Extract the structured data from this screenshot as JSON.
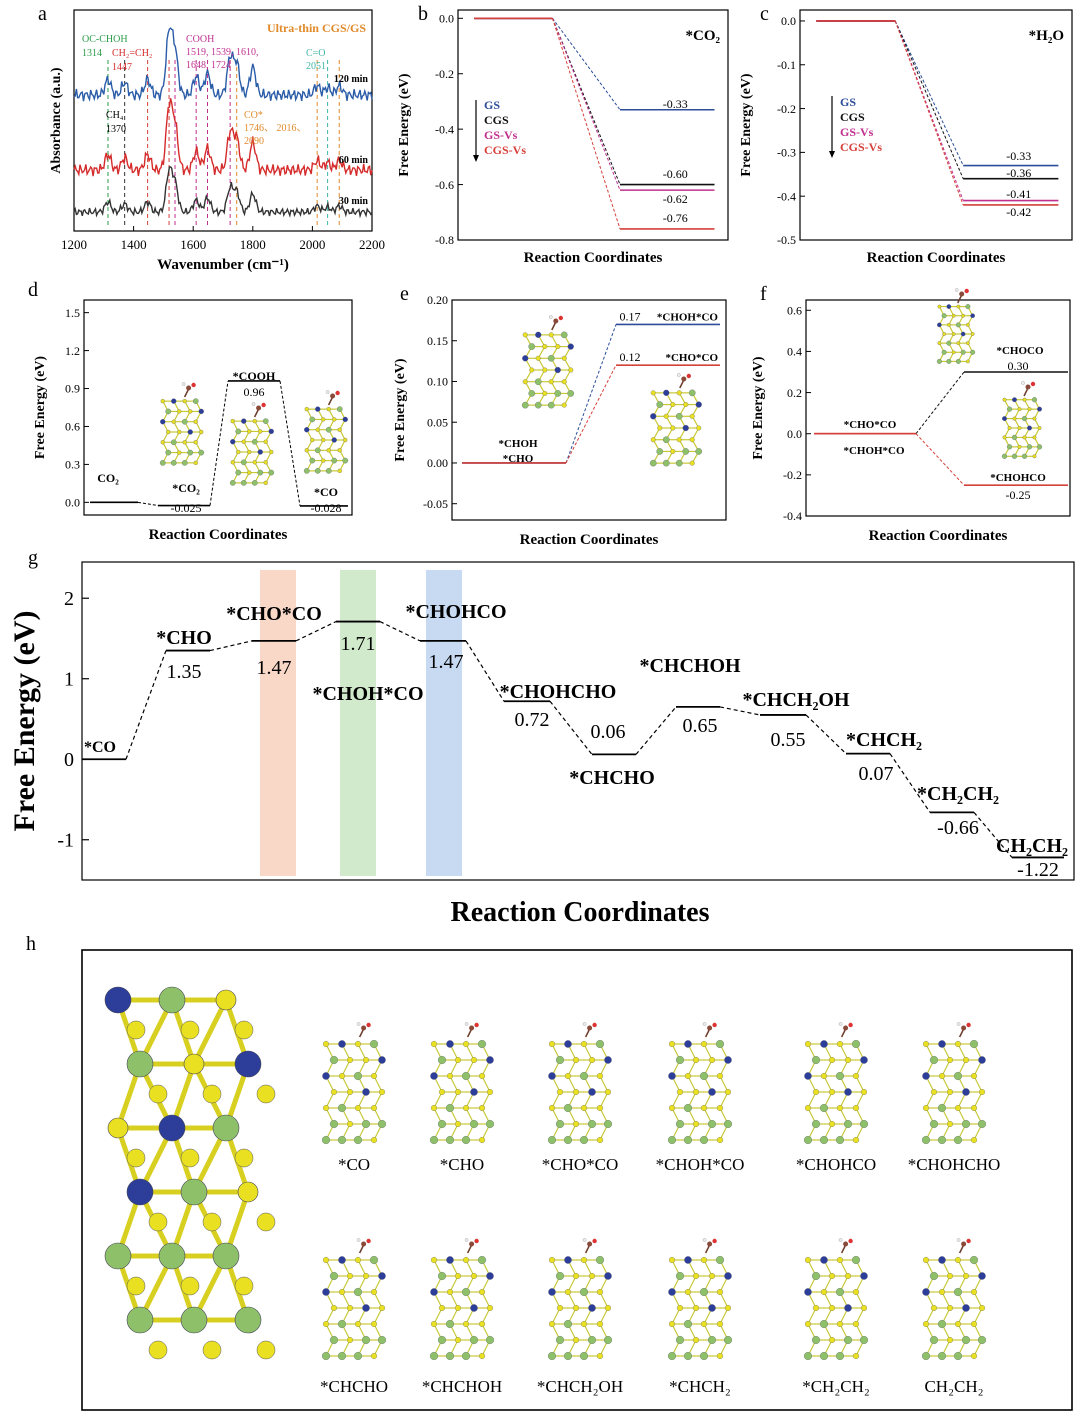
{
  "colors": {
    "gs": "#2b4d9a",
    "cgs": "#111111",
    "gsvs": "#c0308f",
    "cgsvs": "#d6403a",
    "blue_trace": "#2a5ca8",
    "red_trace": "#d52b2b",
    "gray_trace": "#333333",
    "orange_text": "#e08a2a",
    "green_text": "#2a9d4a",
    "teal_text": "#3fb6a6",
    "atom_yellow": "#e8e020",
    "atom_green": "#8ec06a",
    "atom_blue": "#2c3e99",
    "band_orange": "#f4b89a",
    "band_green": "#a9d8a0",
    "band_blue": "#9bbbe8"
  },
  "panels": {
    "a": {
      "letter": "a",
      "title": "Ultra-thin CGS/GS",
      "xlabel": "Wavenumber (cm⁻¹)",
      "ylabel": "Absorbance (a.u.)",
      "xticks": [
        "1200",
        "1400",
        "1600",
        "1800",
        "2000",
        "2200"
      ],
      "traces": [
        "120 min",
        "60 min",
        "30 min"
      ],
      "ann_occhoh": [
        "OC-CHOH",
        "1314"
      ],
      "ann_ch2ch2": [
        "CH₂=CH₂",
        "1447"
      ],
      "ann_cooh": [
        "COOH",
        "1519, 1539, 1610,",
        "1648, 1724"
      ],
      "ann_co": [
        "C=O",
        "2051"
      ],
      "ann_ch4": [
        "CH₄",
        "1370"
      ],
      "ann_costar": [
        "CO*",
        "1746、 2016、",
        "2090"
      ]
    },
    "b": {
      "letter": "b",
      "species": "*CO₂",
      "xlabel": "Reaction Coordinates",
      "ylabel": "Free Energy (eV)",
      "legend": [
        "GS",
        "CGS",
        "GS-Vs",
        "CGS-Vs"
      ],
      "yticks": [
        "0.0",
        "-0.2",
        "-0.4",
        "-0.6",
        "-0.8"
      ],
      "vals": [
        "-0.33",
        "-0.60",
        "-0.62",
        "-0.76"
      ]
    },
    "c": {
      "letter": "c",
      "species": "*H₂O",
      "xlabel": "Reaction Coordinates",
      "ylabel": "Free Energy (eV)",
      "legend": [
        "GS",
        "CGS",
        "GS-Vs",
        "CGS-Vs"
      ],
      "yticks": [
        "0.0",
        "-0.1",
        "-0.2",
        "-0.3",
        "-0.4",
        "-0.5"
      ],
      "vals": [
        "-0.33",
        "-0.36",
        "-0.41",
        "-0.42"
      ]
    },
    "d": {
      "letter": "d",
      "xlabel": "Reaction Coordinates",
      "ylabel": "Free Energy (eV)",
      "yticks": [
        "1.5",
        "1.2",
        "0.9",
        "0.6",
        "0.3",
        "0.0"
      ],
      "states": [
        "CO₂",
        "*CO₂",
        "*COOH",
        "*CO"
      ],
      "vals": [
        "-0.025",
        "0.96",
        "-0.028"
      ]
    },
    "e": {
      "letter": "e",
      "xlabel": "Reaction Coordinates",
      "ylabel": "Free Energy (eV)",
      "yticks": [
        "0.20",
        "0.15",
        "0.10",
        "0.05",
        "0.00",
        "-0.05"
      ],
      "start": [
        "*CHOH",
        "*CHO"
      ],
      "ends": [
        "*CHOH*CO",
        "*CHO*CO"
      ],
      "vals": [
        "0.17",
        "0.12"
      ]
    },
    "f": {
      "letter": "f",
      "xlabel": "Reaction Coordinates",
      "ylabel": "Free Energy (eV)",
      "yticks": [
        "0.6",
        "0.4",
        "0.2",
        "0.0",
        "-0.2",
        "-0.4"
      ],
      "start": [
        "*CHO*CO",
        "*CHOH*CO"
      ],
      "ends": [
        "*CHOCO",
        "*CHOHCO"
      ],
      "vals": [
        "0.30",
        "-0.25"
      ]
    },
    "g": {
      "letter": "g",
      "xlabel": "Reaction Coordinates",
      "ylabel": "Free Energy (eV)",
      "yticks": [
        "2",
        "1",
        "0",
        "-1"
      ]
    },
    "h": {
      "letter": "h",
      "row1": [
        "*CO",
        "*CHO",
        "*CHO*CO",
        "*CHOH*CO",
        "*CHOHCO",
        "*CHOHCHO"
      ],
      "row2": [
        "*CHCHO",
        "*CHCHOH",
        "*CHCH₂OH",
        "*CHCH₂",
        "*CH₂CH₂",
        "CH₂CH₂"
      ]
    }
  },
  "chart_data": [
    {
      "type": "line",
      "panel": "a",
      "title": "Ultra-thin CGS/GS",
      "xlabel": "Wavenumber (cm⁻¹)",
      "ylabel": "Absorbance (a.u.)",
      "xlim": [
        1200,
        2200
      ],
      "series": [
        {
          "name": "120 min"
        },
        {
          "name": "60 min"
        },
        {
          "name": "30 min"
        }
      ],
      "markers": [
        1314,
        1370,
        1447,
        1519,
        1539,
        1610,
        1648,
        1724,
        1746,
        2016,
        2051,
        2090
      ]
    },
    {
      "type": "line",
      "panel": "b",
      "species": "*CO₂",
      "ylim": [
        -0.8,
        0.0
      ],
      "xlabel": "Reaction Coordinates",
      "ylabel": "Free Energy (eV)",
      "series": [
        {
          "name": "GS",
          "values": [
            0.0,
            -0.33
          ]
        },
        {
          "name": "CGS",
          "values": [
            0.0,
            -0.6
          ]
        },
        {
          "name": "GS-Vs",
          "values": [
            0.0,
            -0.62
          ]
        },
        {
          "name": "CGS-Vs",
          "values": [
            0.0,
            -0.76
          ]
        }
      ]
    },
    {
      "type": "line",
      "panel": "c",
      "species": "*H₂O",
      "ylim": [
        -0.5,
        0.0
      ],
      "xlabel": "Reaction Coordinates",
      "ylabel": "Free Energy (eV)",
      "series": [
        {
          "name": "GS",
          "values": [
            0.0,
            -0.33
          ]
        },
        {
          "name": "CGS",
          "values": [
            0.0,
            -0.36
          ]
        },
        {
          "name": "GS-Vs",
          "values": [
            0.0,
            -0.41
          ]
        },
        {
          "name": "CGS-Vs",
          "values": [
            0.0,
            -0.42
          ]
        }
      ]
    },
    {
      "type": "line",
      "panel": "d",
      "ylim": [
        -0.1,
        1.6
      ],
      "xlabel": "Reaction Coordinates",
      "ylabel": "Free Energy (eV)",
      "categories": [
        "CO₂",
        "*CO₂",
        "*COOH",
        "*CO"
      ],
      "values": [
        0.0,
        -0.025,
        0.96,
        -0.028
      ]
    },
    {
      "type": "line",
      "panel": "e",
      "ylim": [
        -0.07,
        0.2
      ],
      "xlabel": "Reaction Coordinates",
      "ylabel": "Free Energy (eV)",
      "series": [
        {
          "name": "*CHOH*CO",
          "values": [
            0.0,
            0.17
          ]
        },
        {
          "name": "*CHO*CO",
          "values": [
            0.0,
            0.12
          ]
        }
      ]
    },
    {
      "type": "line",
      "panel": "f",
      "ylim": [
        -0.4,
        0.65
      ],
      "xlabel": "Reaction Coordinates",
      "ylabel": "Free Energy (eV)",
      "series": [
        {
          "name": "*CHOCO",
          "values": [
            0.0,
            0.3
          ]
        },
        {
          "name": "*CHOHCO",
          "values": [
            0.0,
            -0.25
          ]
        }
      ]
    },
    {
      "type": "line",
      "panel": "g",
      "ylim": [
        -1.5,
        2.45
      ],
      "xlabel": "Reaction Coordinates",
      "ylabel": "Free Energy (eV)",
      "categories": [
        "*CO",
        "*CHO",
        "*CHO*CO",
        "*CHOH*CO",
        "*CHOHCO",
        "*CHOHCHO",
        "*CHCHO",
        "*CHCHOH",
        "*CHCH₂OH",
        "*CHCH₂",
        "*CH₂CH₂",
        "CH₂CH₂"
      ],
      "values": [
        0,
        1.35,
        1.47,
        1.71,
        1.47,
        0.72,
        0.06,
        0.65,
        0.55,
        0.07,
        -0.66,
        -1.22
      ],
      "value_labels": [
        "",
        "1.35",
        "1.47",
        "1.71",
        "1.47",
        "0.72",
        "0.06",
        "0.65",
        "0.55",
        "0.07",
        "-0.66",
        "-1.22"
      ]
    }
  ]
}
